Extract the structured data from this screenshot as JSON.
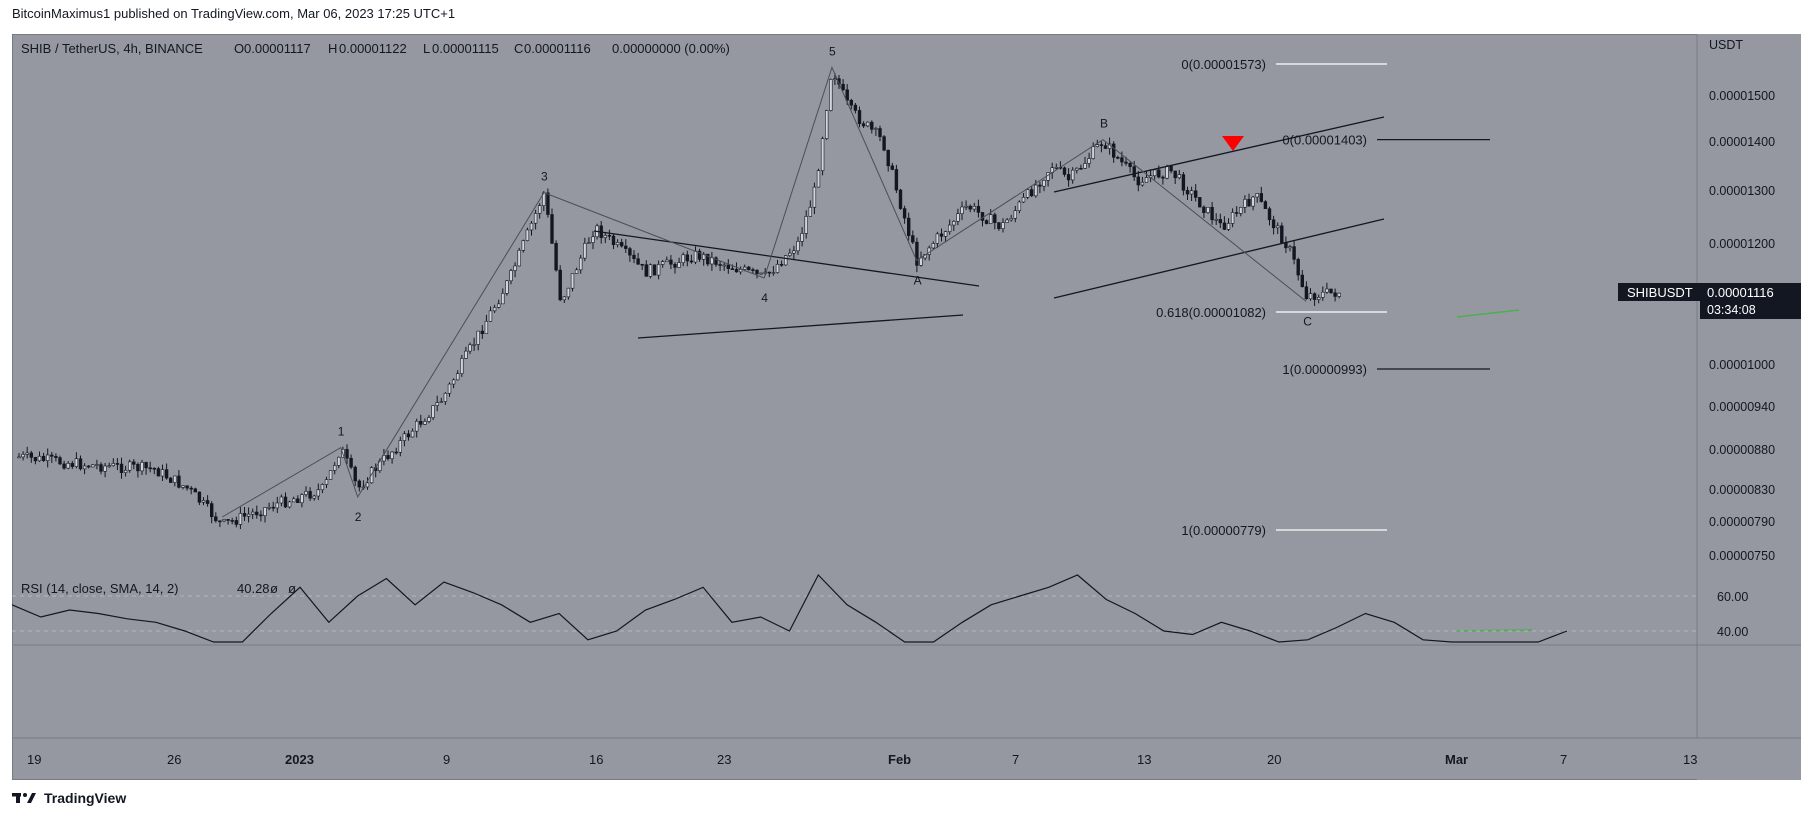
{
  "header": {
    "publisher_line": "BitcoinMaximus1 published on TradingView.com, Mar 06, 2023 17:25 UTC+1"
  },
  "footer": {
    "brand": "TradingView"
  },
  "legend": {
    "symbol": "SHIB / TetherUS, 4h, BINANCE",
    "o_label": "O",
    "o_value": "0.00001117",
    "h_label": "H",
    "h_value": "0.00001122",
    "l_label": "L",
    "l_value": "0.00001115",
    "c_label": "C",
    "c_value": "0.00001116",
    "change": "0.00000000 (0.00%)"
  },
  "rsi_legend": {
    "name": "RSI (14, close, SMA, 14, 2)",
    "value": "40.28",
    "extra1": "ø",
    "extra2": "ø"
  },
  "price_tag": {
    "ticker": "SHIBUSDT",
    "price": "0.00001116",
    "countdown": "03:34:08"
  },
  "colors": {
    "background": "#9598a1",
    "candle": "#131722",
    "tag_bg": "#131722",
    "tag_text": "#ffffff",
    "signal": "#ff0000",
    "divergence": "#4caf50",
    "fib_line": "#ffffff"
  },
  "chart_data": [
    {
      "type": "candlestick",
      "title": "SHIB / TetherUS, 4h, BINANCE",
      "y_axis_unit": "USDT",
      "y_ticks": [
        "0.00001500",
        "0.00001400",
        "0.00001300",
        "0.00001200",
        "0.00001000",
        "0.00000940",
        "0.00000880",
        "0.00000830",
        "0.00000790",
        "0.00000750"
      ],
      "x_ticks": [
        "19",
        "26",
        "2023",
        "9",
        "16",
        "23",
        "Feb",
        "7",
        "13",
        "20",
        "Mar",
        "7",
        "13"
      ],
      "close_path": [
        [
          "Dec 18",
          8.7e-06
        ],
        [
          "Dec 22",
          8.6e-06
        ],
        [
          "Dec 26",
          8.55e-06
        ],
        [
          "Dec 28",
          8.3e-06
        ],
        [
          "Dec 30",
          7.85e-06
        ],
        [
          "Jan 2",
          8.1e-06
        ],
        [
          "Jan 5",
          8.3e-06
        ],
        [
          "Jan 6",
          8.82e-06
        ],
        [
          "Jan 7",
          8.3e-06
        ],
        [
          "Jan 8",
          8.55e-06
        ],
        [
          "Jan 12",
          9.5e-06
        ],
        [
          "Jan 16",
          1.14e-05
        ],
        [
          "Jan 18",
          1.295e-05
        ],
        [
          "Jan 19",
          1.1e-05
        ],
        [
          "Jan 21",
          1.23e-05
        ],
        [
          "Jan 24",
          1.15e-05
        ],
        [
          "Jan 27",
          1.18e-05
        ],
        [
          "Jan 31",
          1.14e-05
        ],
        [
          "Feb 2",
          1.2e-05
        ],
        [
          "Feb 3",
          1.3e-05
        ],
        [
          "Feb 4",
          1.565e-05
        ],
        [
          "Feb 5",
          1.47e-05
        ],
        [
          "Feb 7",
          1.4e-05
        ],
        [
          "Feb 9",
          1.17e-05
        ],
        [
          "Feb 12",
          1.27e-05
        ],
        [
          "Feb 14",
          1.23e-05
        ],
        [
          "Feb 17",
          1.35e-05
        ],
        [
          "Feb 18",
          1.32e-05
        ],
        [
          "Feb 20",
          1.4e-05
        ],
        [
          "Feb 22",
          1.32e-05
        ],
        [
          "Feb 24",
          1.34e-05
        ],
        [
          "Feb 27",
          1.23e-05
        ],
        [
          "Mar 1",
          1.29e-05
        ],
        [
          "Mar 3",
          1.19e-05
        ],
        [
          "Mar 4",
          1.11e-05
        ],
        [
          "Mar 6",
          1.116e-05
        ]
      ],
      "elliott_waves": [
        {
          "label": "1",
          "x": "Jan 6",
          "y": 8.82e-06
        },
        {
          "label": "2",
          "x": "Jan 7",
          "y": 8.2e-06
        },
        {
          "label": "3",
          "x": "Jan 18",
          "y": 1.295e-05
        },
        {
          "label": "4",
          "x": "Jan 31",
          "y": 1.14e-05
        },
        {
          "label": "5",
          "x": "Feb 4",
          "y": 1.565e-05
        },
        {
          "label": "A",
          "x": "Feb 9",
          "y": 1.17e-05
        },
        {
          "label": "B",
          "x": "Feb 20",
          "y": 1.403e-05
        },
        {
          "label": "C",
          "x": "Mar 4",
          "y": 1.1e-05
        }
      ],
      "fib_levels": [
        {
          "label": "0(0.00001573)",
          "value": 1.573e-05
        },
        {
          "label": "0(0.00001403)",
          "value": 1.403e-05
        },
        {
          "label": "0.618(0.00001082)",
          "value": 1.082e-05
        },
        {
          "label": "1(0.00000993)",
          "value": 9.93e-06
        },
        {
          "label": "1(0.00000779)",
          "value": 7.79e-06
        }
      ]
    },
    {
      "type": "line",
      "title": "RSI (14, close, SMA, 14, 2)",
      "y_ticks": [
        "60.00",
        "40.00"
      ],
      "values": [
        55,
        48,
        52,
        50,
        47,
        45,
        40,
        28,
        30,
        50,
        65,
        45,
        60,
        70,
        55,
        68,
        62,
        55,
        45,
        50,
        35,
        40,
        52,
        58,
        65,
        45,
        48,
        40,
        72,
        55,
        45,
        30,
        25,
        45,
        55,
        60,
        65,
        72,
        58,
        50,
        40,
        38,
        45,
        40,
        30,
        35,
        42,
        50,
        45,
        35,
        28,
        32,
        30,
        30,
        40
      ],
      "last_value": 40.28
    }
  ]
}
